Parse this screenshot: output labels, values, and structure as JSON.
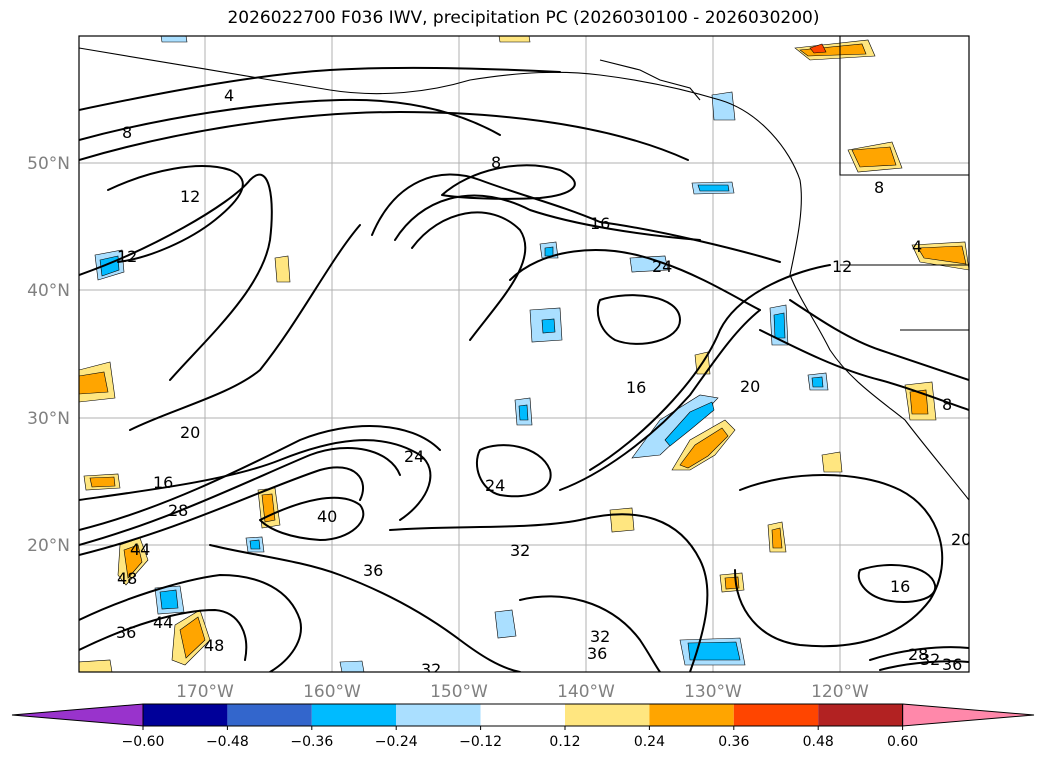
{
  "title": "2026022700 F036 IWV, precipitation PC (2026030100 - 2026030200)",
  "colors": {
    "purple": "#9933cc",
    "navy": "#000099",
    "royal": "#3366cc",
    "deepsky": "#00bbff",
    "lightblue": "#aadfff",
    "white": "#ffffff",
    "yellow": "#ffe680",
    "orange": "#ffa500",
    "redorange": "#ff4500",
    "firebrick": "#b22222",
    "pink": "#ff88aa"
  },
  "latitude_labels": [
    "50°N",
    "40°N",
    "30°N",
    "20°N"
  ],
  "longitude_labels": [
    "170°W",
    "160°W",
    "150°W",
    "140°W",
    "130°W",
    "120°W"
  ],
  "colorbar": {
    "ticks": [
      "−0.60",
      "−0.48",
      "−0.36",
      "−0.24",
      "−0.12",
      "0.12",
      "0.24",
      "0.36",
      "0.48",
      "0.60"
    ],
    "bins": [
      "purple",
      "navy",
      "royal",
      "deepsky",
      "lightblue",
      "white",
      "yellow",
      "orange",
      "redorange",
      "firebrick",
      "pink"
    ]
  },
  "contour_labels": [
    "4",
    "8",
    "8",
    "12",
    "12",
    "16",
    "24",
    "12",
    "8",
    "4",
    "16",
    "20",
    "20",
    "16",
    "24",
    "24",
    "28",
    "40",
    "44",
    "48",
    "36",
    "44",
    "48",
    "32",
    "36",
    "32",
    "36",
    "32",
    "16",
    "28",
    "32",
    "36",
    "20",
    "8"
  ]
}
